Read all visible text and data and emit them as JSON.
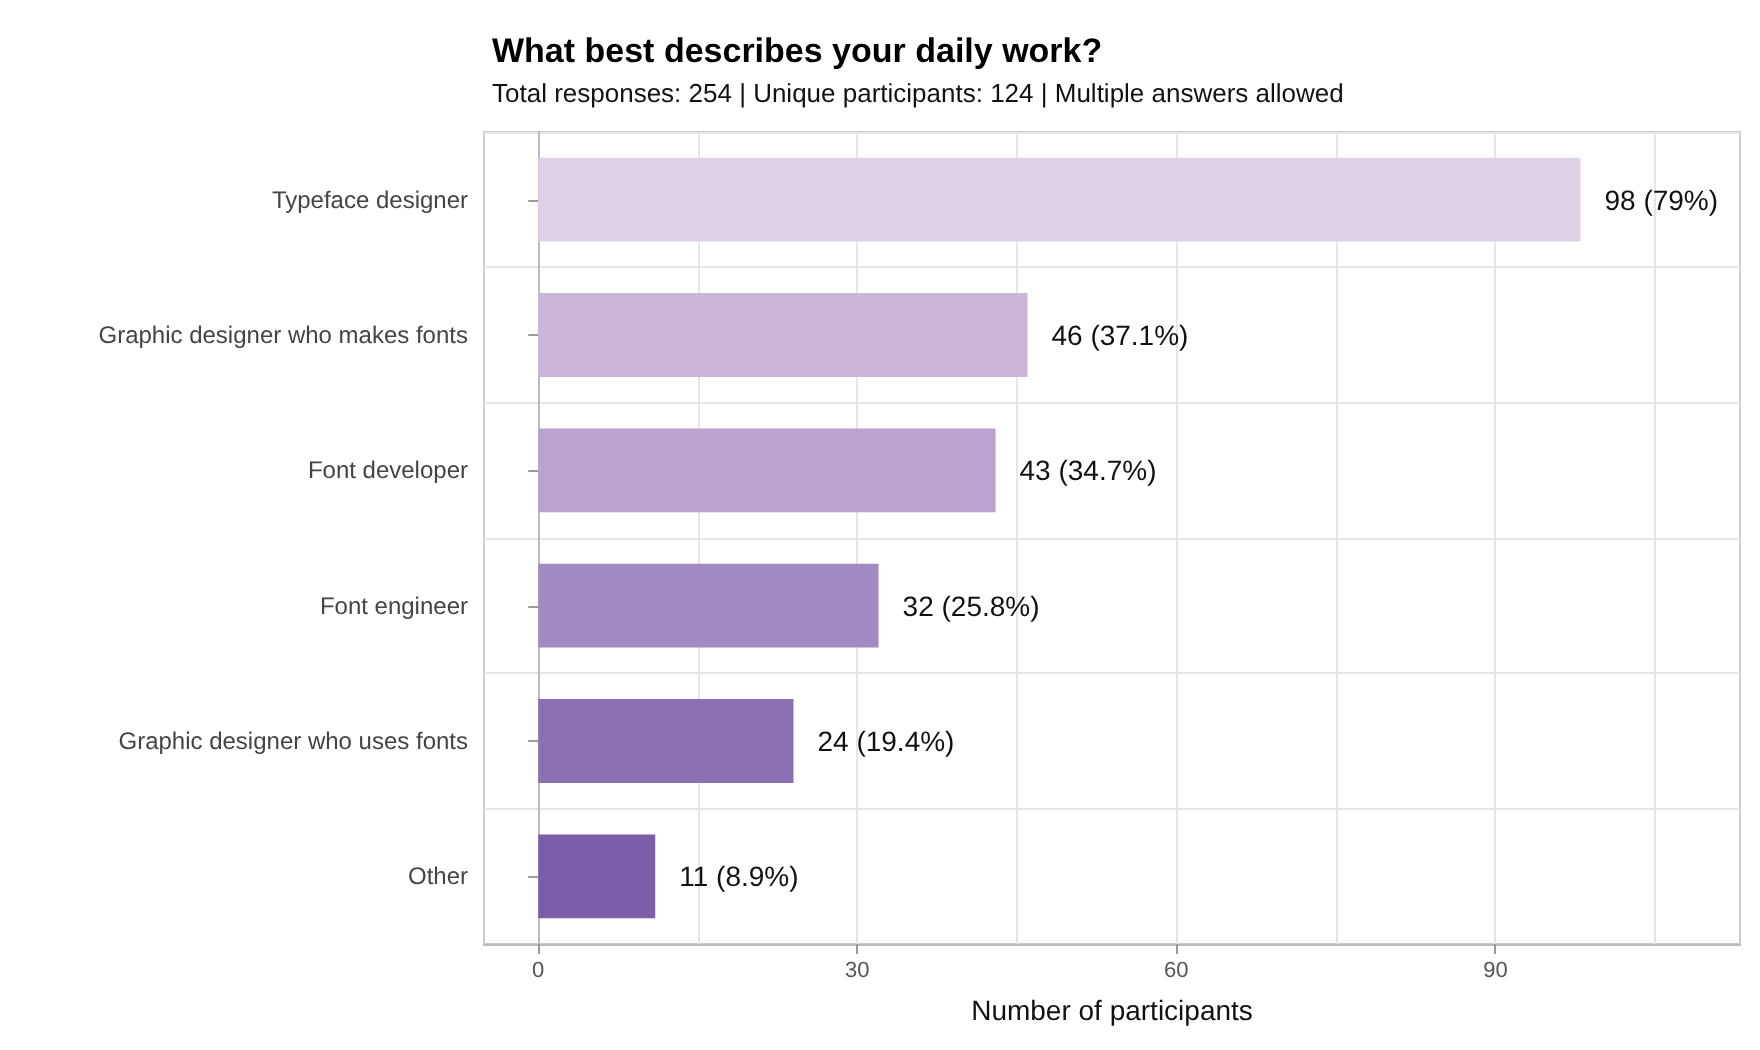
{
  "chart_data": {
    "type": "bar",
    "orientation": "horizontal",
    "title": "What best describes your daily work?",
    "subtitle": "Total responses: 254 | Unique participants: 124 | Multiple answers allowed",
    "xlabel": "Number of participants",
    "categories": [
      "Typeface designer",
      "Graphic designer who makes fonts",
      "Font developer",
      "Font engineer",
      "Graphic designer who uses fonts",
      "Other"
    ],
    "values": [
      98,
      46,
      43,
      32,
      24,
      11
    ],
    "colors": [
      "#ded0e6",
      "#cbb6da",
      "#b9a1d0",
      "#a28ac2",
      "#8b70b4",
      "#7b5ea9"
    ],
    "value_labels": [
      "98 (79%)",
      "46 (37.1%)",
      "43 (34.7%)",
      "32 (25.8%)",
      "24 (19.4%)",
      "11 (8.9%)"
    ],
    "xlim": [
      -5.1,
      113
    ],
    "xticks": [
      0,
      {
        "value": 15,
        "label": null
      },
      30,
      {
        "value": 45,
        "label": null
      },
      60,
      {
        "value": 75,
        "label": null
      },
      90,
      {
        "value": 105,
        "label": null
      }
    ],
    "grid": true
  }
}
